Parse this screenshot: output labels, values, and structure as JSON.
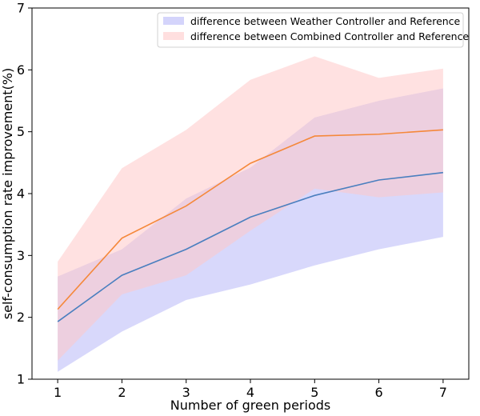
{
  "chart_data": {
    "type": "line",
    "title": "",
    "xlabel": "Number of green periods",
    "ylabel": "self-consumption rate improvement(%)",
    "x": [
      1,
      2,
      3,
      4,
      5,
      6,
      7
    ],
    "xlim": [
      0.6,
      7.4
    ],
    "ylim": [
      1,
      7
    ],
    "xticks": [
      1,
      2,
      3,
      4,
      5,
      6,
      7
    ],
    "yticks": [
      1,
      2,
      3,
      4,
      5,
      6,
      7
    ],
    "grid": false,
    "legend_position": "top-right",
    "series": [
      {
        "name": "difference between Weather Controller and Reference",
        "line_color": "#4a7fbf",
        "band_color": "#b8b8f8",
        "mean": [
          1.93,
          2.68,
          3.1,
          3.62,
          3.97,
          4.22,
          4.34
        ],
        "lower": [
          1.12,
          1.77,
          2.28,
          2.53,
          2.84,
          3.1,
          3.3
        ],
        "upper": [
          2.66,
          3.1,
          3.92,
          4.42,
          5.23,
          5.5,
          5.7
        ]
      },
      {
        "name": "difference between Combined Controller and Reference",
        "line_color": "#f5883a",
        "band_color": "#ffc9c9",
        "mean": [
          2.13,
          3.28,
          3.8,
          4.49,
          4.93,
          4.96,
          5.03
        ],
        "lower": [
          1.3,
          2.37,
          2.68,
          3.4,
          4.08,
          3.94,
          4.02
        ],
        "upper": [
          2.9,
          4.41,
          5.03,
          5.84,
          6.22,
          5.87,
          6.02
        ]
      }
    ]
  }
}
